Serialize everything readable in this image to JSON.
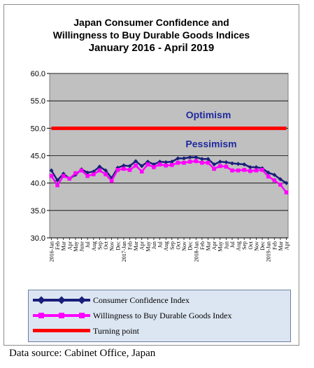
{
  "chart_data": {
    "type": "line",
    "title_lines": [
      "Japan Consumer Confidence and",
      "Willingness to Buy Durable Goods Indices",
      "January 2016 - April 2019"
    ],
    "xlabel": "",
    "ylabel": "",
    "ylim": [
      30,
      60
    ],
    "yticks": [
      "30.0",
      "35.0",
      "40.0",
      "45.0",
      "50.0",
      "55.0",
      "60.0"
    ],
    "grid": true,
    "legend_position": "bottom",
    "x": [
      "2016-Jan",
      "Feb",
      "Mar",
      "Apr",
      "May",
      "June",
      "Jul",
      "Aug",
      "Sep",
      "Oct",
      "Nov",
      "Dec",
      "2017-Jan",
      "Feb",
      "Mar",
      "Apr",
      "May",
      "Jun",
      "Jul",
      "Aug",
      "Sep",
      "Oct",
      "Nov",
      "Dec",
      "2018-Jan",
      "Feb",
      "Mar",
      "Apr",
      "May",
      "Jun",
      "Jul",
      "Aug",
      "Sep",
      "Oct",
      "Nov",
      "Dec",
      "2019-Jan",
      "Feb",
      "Mar",
      "Apr"
    ],
    "x_tick_labels": [
      "2016-Jan",
      "Feb",
      "Mar",
      "Apr",
      "May",
      "June",
      "Jul",
      "Aug",
      "Sep",
      "Oct",
      "Nov",
      "Dec",
      "2017-Jan",
      "Feb",
      "Mar",
      "Apr",
      "May",
      "Jun",
      "Jul",
      "Aug",
      "Sep",
      "Oct",
      "Nov",
      "Dec",
      "2018-Jan",
      "Feb",
      "Mar",
      "Apr",
      "May",
      "Jun",
      "Jul",
      "Aug",
      "Sep",
      "Oct",
      "Nov",
      "Dec",
      "2019-Jan",
      "Feb",
      "Mar",
      "Apr"
    ],
    "series": [
      {
        "name": "Consumer Confidence Index",
        "color": "#1a1f7a",
        "values": [
          42.3,
          40.5,
          41.7,
          40.8,
          41.5,
          42.5,
          41.9,
          42.1,
          43.0,
          42.3,
          40.9,
          42.8,
          43.2,
          43.1,
          44.0,
          43.1,
          43.9,
          43.4,
          43.9,
          43.8,
          43.9,
          44.5,
          44.5,
          44.7,
          44.7,
          44.4,
          44.4,
          43.4,
          43.9,
          43.8,
          43.6,
          43.5,
          43.4,
          42.9,
          42.9,
          42.7,
          41.9,
          41.5,
          40.7,
          40.0
        ],
        "marker": "diamond"
      },
      {
        "name": "Willingness to Buy Durable Goods Index",
        "color": "#ff00ff",
        "values": [
          41.3,
          39.6,
          41.3,
          40.8,
          41.8,
          42.3,
          41.3,
          41.6,
          42.3,
          41.6,
          40.4,
          42.4,
          42.6,
          42.4,
          43.2,
          42.1,
          43.4,
          42.9,
          43.4,
          43.2,
          43.3,
          43.7,
          43.7,
          43.9,
          44.0,
          43.7,
          43.7,
          42.6,
          43.1,
          43.0,
          42.3,
          42.3,
          42.4,
          42.2,
          42.3,
          42.4,
          41.2,
          40.5,
          39.7,
          38.3
        ],
        "marker": "square"
      },
      {
        "name": "Turning point",
        "color": "#ff0000",
        "values": [
          50,
          50,
          50,
          50,
          50,
          50,
          50,
          50,
          50,
          50,
          50,
          50,
          50,
          50,
          50,
          50,
          50,
          50,
          50,
          50,
          50,
          50,
          50,
          50,
          50,
          50,
          50,
          50,
          50,
          50,
          50,
          50,
          50,
          50,
          50,
          50,
          50,
          50,
          50,
          50
        ],
        "marker": "none"
      }
    ],
    "annotations": [
      "Optimism",
      "Pessimism"
    ]
  },
  "source_note": "Data source: Cabinet Office, Japan",
  "colors": {
    "plot_background": "#c0c0c0",
    "legend_background": "#dce6f2",
    "annotation_text": "#1f2a9e"
  }
}
